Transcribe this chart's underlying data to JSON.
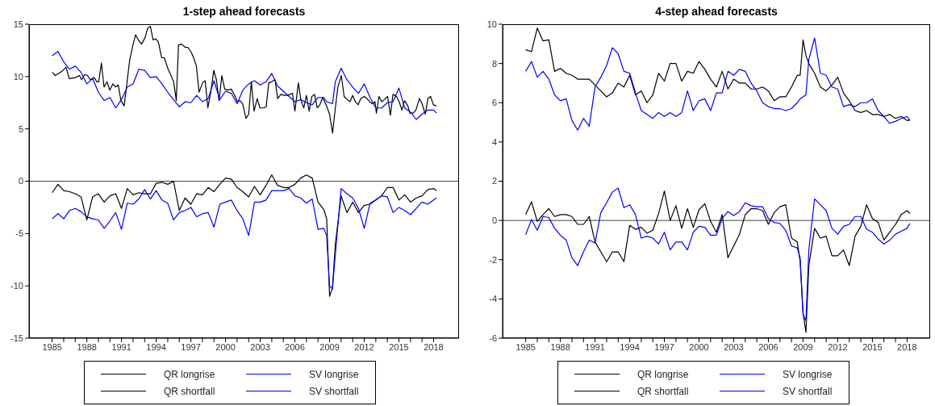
{
  "chart_data": [
    {
      "type": "line",
      "title": "1-step ahead forecasts",
      "legend": "bottom",
      "marker": "none",
      "line_style": "solid",
      "x": [
        1985,
        1985.5,
        1986,
        1986.5,
        1987,
        1987.5,
        1988,
        1988.5,
        1989,
        1989.5,
        1990,
        1990.5,
        1991,
        1991.5,
        1992,
        1992.5,
        1993,
        1993.5,
        1994,
        1994.5,
        1995,
        1995.5,
        1996,
        1996.5,
        1997,
        1997.5,
        1998,
        1998.5,
        1999,
        1999.5,
        2000,
        2000.5,
        2001,
        2001.5,
        2002,
        2002.5,
        2003,
        2003.5,
        2004,
        2004.5,
        2005,
        2005.5,
        2006,
        2006.5,
        2007,
        2007.5,
        2008,
        2008.5,
        2008.75,
        2009,
        2009.25,
        2009.5,
        2010,
        2010.5,
        2011,
        2011.5,
        2012,
        2012.5,
        2013,
        2013.5,
        2014,
        2014.5,
        2015,
        2015.5,
        2016,
        2016.5,
        2017,
        2017.5,
        2018,
        2018.25
      ],
      "xlim": [
        1983,
        2020.2
      ],
      "xticks": [
        1985,
        {
          "value": 1986,
          "label": null
        },
        {
          "value": 1987,
          "label": null
        },
        1988,
        {
          "value": 1989,
          "label": null
        },
        {
          "value": 1990,
          "label": null
        },
        1991,
        {
          "value": 1992,
          "label": null
        },
        {
          "value": 1993,
          "label": null
        },
        1994,
        {
          "value": 1995,
          "label": null
        },
        {
          "value": 1996,
          "label": null
        },
        1997,
        {
          "value": 1998,
          "label": null
        },
        {
          "value": 1999,
          "label": null
        },
        2000,
        {
          "value": 2001,
          "label": null
        },
        {
          "value": 2002,
          "label": null
        },
        2003,
        {
          "value": 2004,
          "label": null
        },
        {
          "value": 2005,
          "label": null
        },
        2006,
        {
          "value": 2007,
          "label": null
        },
        {
          "value": 2008,
          "label": null
        },
        2009,
        {
          "value": 2010,
          "label": null
        },
        {
          "value": 2011,
          "label": null
        },
        2012,
        {
          "value": 2013,
          "label": null
        },
        {
          "value": 2014,
          "label": null
        },
        2015,
        {
          "value": 2016,
          "label": null
        },
        {
          "value": 2017,
          "label": null
        },
        2018
      ],
      "ylim": [
        -15,
        15
      ],
      "yticks": [
        -15,
        -10,
        -5,
        0,
        5,
        10,
        15
      ],
      "ref_lines": [
        {
          "axis": "y",
          "value": 0,
          "color": "#404040"
        }
      ],
      "series": [
        {
          "name": "QR longrise",
          "color": "#000000",
          "x": [
            1985.0,
            1985.28,
            1985.86,
            1986.2,
            1986.48,
            1987.01,
            1987.36,
            1987.55,
            1987.82,
            1988.06,
            1988.29,
            1988.63,
            1988.87,
            1989.03,
            1989.26,
            1989.49,
            1989.75,
            1989.98,
            1990.25,
            1990.49,
            1990.72,
            1990.95,
            1991.23,
            1991.71,
            1991.99,
            1992.22,
            1992.45,
            1992.73,
            1993.03,
            1993.26,
            1993.5,
            1993.73,
            1993.96,
            1994.19,
            1994.47,
            1994.7,
            1995.0,
            1995.28,
            1995.51,
            1995.74,
            1995.93,
            1996.2,
            1996.5,
            1996.74,
            1997.04,
            1997.27,
            1997.48,
            1997.71,
            1998.01,
            1998.24,
            1998.47,
            1998.75,
            1998.98,
            1999.21,
            1999.44,
            1999.68,
            1999.93,
            2000.21,
            2000.49,
            2000.79,
            2001.02,
            2001.25,
            2001.48,
            2001.77,
            2002.0,
            2002.23,
            2002.47,
            2002.74,
            2002.98,
            2003.28,
            2003.51,
            2003.74,
            2003.98,
            2004.28,
            2004.51,
            2004.79,
            2005.07,
            2005.37,
            2005.6,
            2005.79,
            2006.0,
            2006.3,
            2006.53,
            2006.77,
            2007.0,
            2007.23,
            2007.47,
            2007.7,
            2007.93,
            2008.16,
            2008.4,
            2008.74,
            2009.0,
            2009.26,
            2009.49,
            2009.72,
            2010.02,
            2010.26,
            2010.53,
            2010.77,
            2011.0,
            2011.23,
            2011.47,
            2011.7,
            2012.0,
            2012.23,
            2012.47,
            2012.7,
            2012.93,
            2013.05,
            2013.28,
            2013.51,
            2013.74,
            2014.02,
            2014.26,
            2014.49,
            2014.79,
            2015.02,
            2015.26,
            2015.49,
            2015.77,
            2015.95,
            2016.23,
            2016.47,
            2016.77,
            2017.0,
            2017.28,
            2017.51,
            2017.74,
            2017.98,
            2018.23
          ],
          "values": [
            10.4,
            10.1,
            10.5,
            10.9,
            9.8,
            9.9,
            10.1,
            9.7,
            10.2,
            10.1,
            9.7,
            9.9,
            9.5,
            9.5,
            11.3,
            9.0,
            9.5,
            8.7,
            9.3,
            9.0,
            9.2,
            7.7,
            7.2,
            11.6,
            13.0,
            14.0,
            13.5,
            13.1,
            13.7,
            14.6,
            14.8,
            13.5,
            13.6,
            13.3,
            11.8,
            11.8,
            10.8,
            10.1,
            9.5,
            7.7,
            13.0,
            13.1,
            12.8,
            12.8,
            12.3,
            11.7,
            11.0,
            8.5,
            9.4,
            9.6,
            7.0,
            8.7,
            10.6,
            9.7,
            7.7,
            10.1,
            8.8,
            8.7,
            8.8,
            8.2,
            7.6,
            7.7,
            7.4,
            6.0,
            6.4,
            9.5,
            6.7,
            7.9,
            7.0,
            7.0,
            7.1,
            9.4,
            9.5,
            9.7,
            7.9,
            8.3,
            8.2,
            8.2,
            8.3,
            8.4,
            6.7,
            9.4,
            7.7,
            7.0,
            8.2,
            6.7,
            8.1,
            8.3,
            7.0,
            7.3,
            8.0,
            7.2,
            6.4,
            4.6,
            6.9,
            9.0,
            10.1,
            8.1,
            7.8,
            7.6,
            8.2,
            7.6,
            7.3,
            7.9,
            8.1,
            7.9,
            7.6,
            7.4,
            7.6,
            6.5,
            8.1,
            7.6,
            7.8,
            8.1,
            6.3,
            8.3,
            8.1,
            7.6,
            6.8,
            7.7,
            7.2,
            6.5,
            6.5,
            6.8,
            7.9,
            7.4,
            6.4,
            7.9,
            8.1,
            7.3,
            7.2
          ]
        },
        {
          "name": "SV longrise",
          "color": "#0000ff",
          "values": [
            12.0,
            12.4,
            11.4,
            10.7,
            11.0,
            10.4,
            9.3,
            9.8,
            8.5,
            7.7,
            8.0,
            7.0,
            7.8,
            9.0,
            9.3,
            10.7,
            10.6,
            9.9,
            10.0,
            9.3,
            8.5,
            7.8,
            7.1,
            7.6,
            7.5,
            8.2,
            7.6,
            7.9,
            9.6,
            7.8,
            8.6,
            8.4,
            7.4,
            8.7,
            9.3,
            9.6,
            9.2,
            9.5,
            10.3,
            9.1,
            8.6,
            8.1,
            7.6,
            7.8,
            7.5,
            7.3,
            8.0,
            8.0,
            7.6,
            7.5,
            7.4,
            9.5,
            10.8,
            9.7,
            9.0,
            8.4,
            9.3,
            8.0,
            7.0,
            7.0,
            7.5,
            7.6,
            8.9,
            7.0,
            6.6,
            5.9,
            6.4,
            6.8,
            6.8,
            6.5
          ]
        },
        {
          "name": "QR shortfall",
          "color": "#000000",
          "values": [
            -1.1,
            -0.3,
            -0.9,
            -1.0,
            -1.2,
            -1.5,
            -3.7,
            -1.5,
            -1.2,
            -2.0,
            -1.4,
            -1.2,
            -2.6,
            -0.7,
            -1.3,
            -1.1,
            -1.2,
            -1.2,
            -0.2,
            -0.1,
            -0.3,
            0.0,
            -2.8,
            -1.6,
            -2.2,
            -1.2,
            -1.3,
            -0.6,
            -1.0,
            -0.3,
            0.3,
            0.2,
            -0.6,
            -1.0,
            -1.5,
            -0.5,
            -1.3,
            -0.4,
            0.6,
            -0.4,
            -0.6,
            -0.6,
            -0.3,
            0.3,
            0.6,
            0.3,
            -2.0,
            -2.7,
            -3.6,
            -11.0,
            -10.2,
            -6.0,
            -1.4,
            -3.0,
            -2.0,
            -3.0,
            -2.3,
            -2.2,
            -1.8,
            -1.4,
            -0.6,
            -0.6,
            -1.8,
            -1.3,
            -2.0,
            -1.6,
            -1.4,
            -0.8,
            -0.7,
            -0.9
          ]
        },
        {
          "name": "SV shortfall",
          "color": "#0000ff",
          "values": [
            -3.6,
            -3.1,
            -3.6,
            -2.8,
            -2.6,
            -2.9,
            -3.4,
            -3.6,
            -3.7,
            -4.5,
            -3.8,
            -3.0,
            -4.6,
            -2.1,
            -2.2,
            -1.7,
            -0.8,
            -1.7,
            -0.9,
            -1.8,
            -2.1,
            -3.7,
            -3.0,
            -2.8,
            -2.5,
            -3.4,
            -3.1,
            -3.0,
            -4.4,
            -2.2,
            -2.0,
            -1.8,
            -2.8,
            -3.6,
            -5.2,
            -2.0,
            -2.0,
            -1.8,
            -0.9,
            -0.9,
            -0.9,
            -0.7,
            -1.4,
            -1.6,
            -2.1,
            -1.7,
            -4.6,
            -4.5,
            -5.2,
            -10.0,
            -10.3,
            -7.0,
            -0.7,
            -1.2,
            -1.6,
            -2.6,
            -4.5,
            -2.1,
            -1.8,
            -1.4,
            -1.5,
            -3.0,
            -2.5,
            -2.8,
            -3.2,
            -2.6,
            -2.0,
            -2.2,
            -1.8,
            -1.6
          ]
        }
      ]
    },
    {
      "type": "line",
      "title": "4-step ahead forecasts",
      "legend": "bottom",
      "marker": "none",
      "line_style": "solid",
      "x": [
        1985,
        1985.5,
        1986,
        1986.5,
        1987,
        1987.5,
        1988,
        1988.5,
        1989,
        1989.5,
        1990,
        1990.5,
        1991,
        1991.5,
        1992,
        1992.5,
        1993,
        1993.5,
        1994,
        1994.5,
        1995,
        1995.5,
        1996,
        1996.5,
        1997,
        1997.5,
        1998,
        1998.5,
        1999,
        1999.5,
        2000,
        2000.5,
        2001,
        2001.5,
        2002,
        2002.5,
        2003,
        2003.5,
        2004,
        2004.5,
        2005,
        2005.5,
        2006,
        2006.5,
        2007,
        2007.5,
        2008,
        2008.5,
        2008.75,
        2009,
        2009.25,
        2009.5,
        2010,
        2010.5,
        2011,
        2011.5,
        2012,
        2012.5,
        2013,
        2013.5,
        2014,
        2014.5,
        2015,
        2015.5,
        2016,
        2016.5,
        2017,
        2017.5,
        2018,
        2018.25
      ],
      "xlim": [
        1983,
        2020
      ],
      "xticks": [
        1985,
        {
          "value": 1986,
          "label": null
        },
        {
          "value": 1987,
          "label": null
        },
        1988,
        {
          "value": 1989,
          "label": null
        },
        {
          "value": 1990,
          "label": null
        },
        1991,
        {
          "value": 1992,
          "label": null
        },
        {
          "value": 1993,
          "label": null
        },
        1994,
        {
          "value": 1995,
          "label": null
        },
        {
          "value": 1996,
          "label": null
        },
        1997,
        {
          "value": 1998,
          "label": null
        },
        {
          "value": 1999,
          "label": null
        },
        2000,
        {
          "value": 2001,
          "label": null
        },
        {
          "value": 2002,
          "label": null
        },
        2003,
        {
          "value": 2004,
          "label": null
        },
        {
          "value": 2005,
          "label": null
        },
        2006,
        {
          "value": 2007,
          "label": null
        },
        {
          "value": 2008,
          "label": null
        },
        2009,
        {
          "value": 2010,
          "label": null
        },
        {
          "value": 2011,
          "label": null
        },
        2012,
        {
          "value": 2013,
          "label": null
        },
        {
          "value": 2014,
          "label": null
        },
        2015,
        {
          "value": 2016,
          "label": null
        },
        {
          "value": 2017,
          "label": null
        },
        2018
      ],
      "ylim": [
        -6,
        10
      ],
      "yticks": [
        -6,
        -4,
        -2,
        0,
        2,
        4,
        6,
        8,
        10
      ],
      "ref_lines": [
        {
          "axis": "y",
          "value": 0,
          "color": "#404040"
        }
      ],
      "series": [
        {
          "name": "QR longrise",
          "color": "#000000",
          "values": [
            8.7,
            8.6,
            9.8,
            9.15,
            9.2,
            7.6,
            7.75,
            7.5,
            7.4,
            7.2,
            7.2,
            7.2,
            6.9,
            6.6,
            6.3,
            6.5,
            7.0,
            6.8,
            7.4,
            6.4,
            6.6,
            6.0,
            6.4,
            7.5,
            7.1,
            8.0,
            8.0,
            7.1,
            7.6,
            7.5,
            8.1,
            7.7,
            7.2,
            6.8,
            7.6,
            6.7,
            7.2,
            7.0,
            7.0,
            6.7,
            6.7,
            6.8,
            6.6,
            6.1,
            6.3,
            6.3,
            6.8,
            7.4,
            7.4,
            9.2,
            8.4,
            8.0,
            7.5,
            6.8,
            6.6,
            6.9,
            7.3,
            6.5,
            6.1,
            5.6,
            5.5,
            5.6,
            5.4,
            5.4,
            5.3,
            5.4,
            5.2,
            5.3,
            5.1,
            5.1
          ]
        },
        {
          "name": "SV longrise",
          "color": "#0000ff",
          "values": [
            7.6,
            8.1,
            7.3,
            7.6,
            7.2,
            6.4,
            6.1,
            6.2,
            5.1,
            4.6,
            5.2,
            4.8,
            6.8,
            7.3,
            7.9,
            8.8,
            8.5,
            7.6,
            7.5,
            6.5,
            5.6,
            5.4,
            5.2,
            5.5,
            5.3,
            5.5,
            5.3,
            5.5,
            6.6,
            5.6,
            6.1,
            6.2,
            5.6,
            6.5,
            6.5,
            7.6,
            7.4,
            7.7,
            7.6,
            7.0,
            6.6,
            6.0,
            5.8,
            5.7,
            5.7,
            5.6,
            5.7,
            6.0,
            6.2,
            6.3,
            6.4,
            8.2,
            9.3,
            7.5,
            7.4,
            6.8,
            6.7,
            5.8,
            5.9,
            5.8,
            6.0,
            6.0,
            6.2,
            5.6,
            5.3,
            4.95,
            5.05,
            5.2,
            5.3,
            5.1
          ]
        },
        {
          "name": "QR shortfall",
          "color": "#000000",
          "values": [
            0.3,
            0.95,
            -0.05,
            0.3,
            0.6,
            0.2,
            0.3,
            0.3,
            0.2,
            -0.2,
            -0.2,
            0.2,
            -1.1,
            -1.6,
            -2.1,
            -1.6,
            -1.6,
            -2.1,
            -0.25,
            -0.45,
            -0.35,
            -0.65,
            -0.5,
            0.35,
            1.5,
            0.0,
            0.75,
            -0.4,
            0.6,
            -0.35,
            0.55,
            0.85,
            -0.05,
            -0.6,
            0.3,
            -1.9,
            -1.3,
            -0.7,
            0.3,
            0.6,
            0.6,
            0.5,
            -0.2,
            0.4,
            0.7,
            0.8,
            -0.9,
            -1.1,
            -2.1,
            -4.7,
            -5.7,
            -2.3,
            -0.4,
            -0.9,
            -0.8,
            -1.8,
            -1.8,
            -1.5,
            -2.3,
            -0.8,
            -0.3,
            0.8,
            0.1,
            -0.1,
            -1.0,
            -0.6,
            -0.2,
            0.3,
            0.5,
            0.35
          ]
        },
        {
          "name": "SV shortfall",
          "color": "#0000ff",
          "values": [
            -0.73,
            0.05,
            -0.5,
            0.2,
            0.15,
            -0.4,
            -0.75,
            -1.0,
            -1.9,
            -2.3,
            -1.6,
            -1.0,
            -1.15,
            0.4,
            0.9,
            1.45,
            1.65,
            0.65,
            0.8,
            0.3,
            -0.9,
            -0.8,
            -0.9,
            -1.2,
            -0.6,
            -1.5,
            -1.1,
            -1.1,
            -1.5,
            -0.6,
            -0.3,
            -0.35,
            -0.75,
            -0.75,
            0.1,
            0.45,
            0.25,
            0.45,
            0.9,
            0.75,
            0.7,
            0.7,
            0.1,
            -0.1,
            -0.15,
            -0.5,
            -1.3,
            -1.4,
            -1.9,
            -4.8,
            -5.1,
            -1.5,
            1.1,
            0.8,
            0.5,
            -0.4,
            -0.7,
            -0.3,
            -0.2,
            0.2,
            0.2,
            -0.45,
            -0.6,
            -0.95,
            -1.2,
            -1.0,
            -0.7,
            -0.55,
            -0.4,
            -0.15
          ]
        }
      ]
    }
  ]
}
